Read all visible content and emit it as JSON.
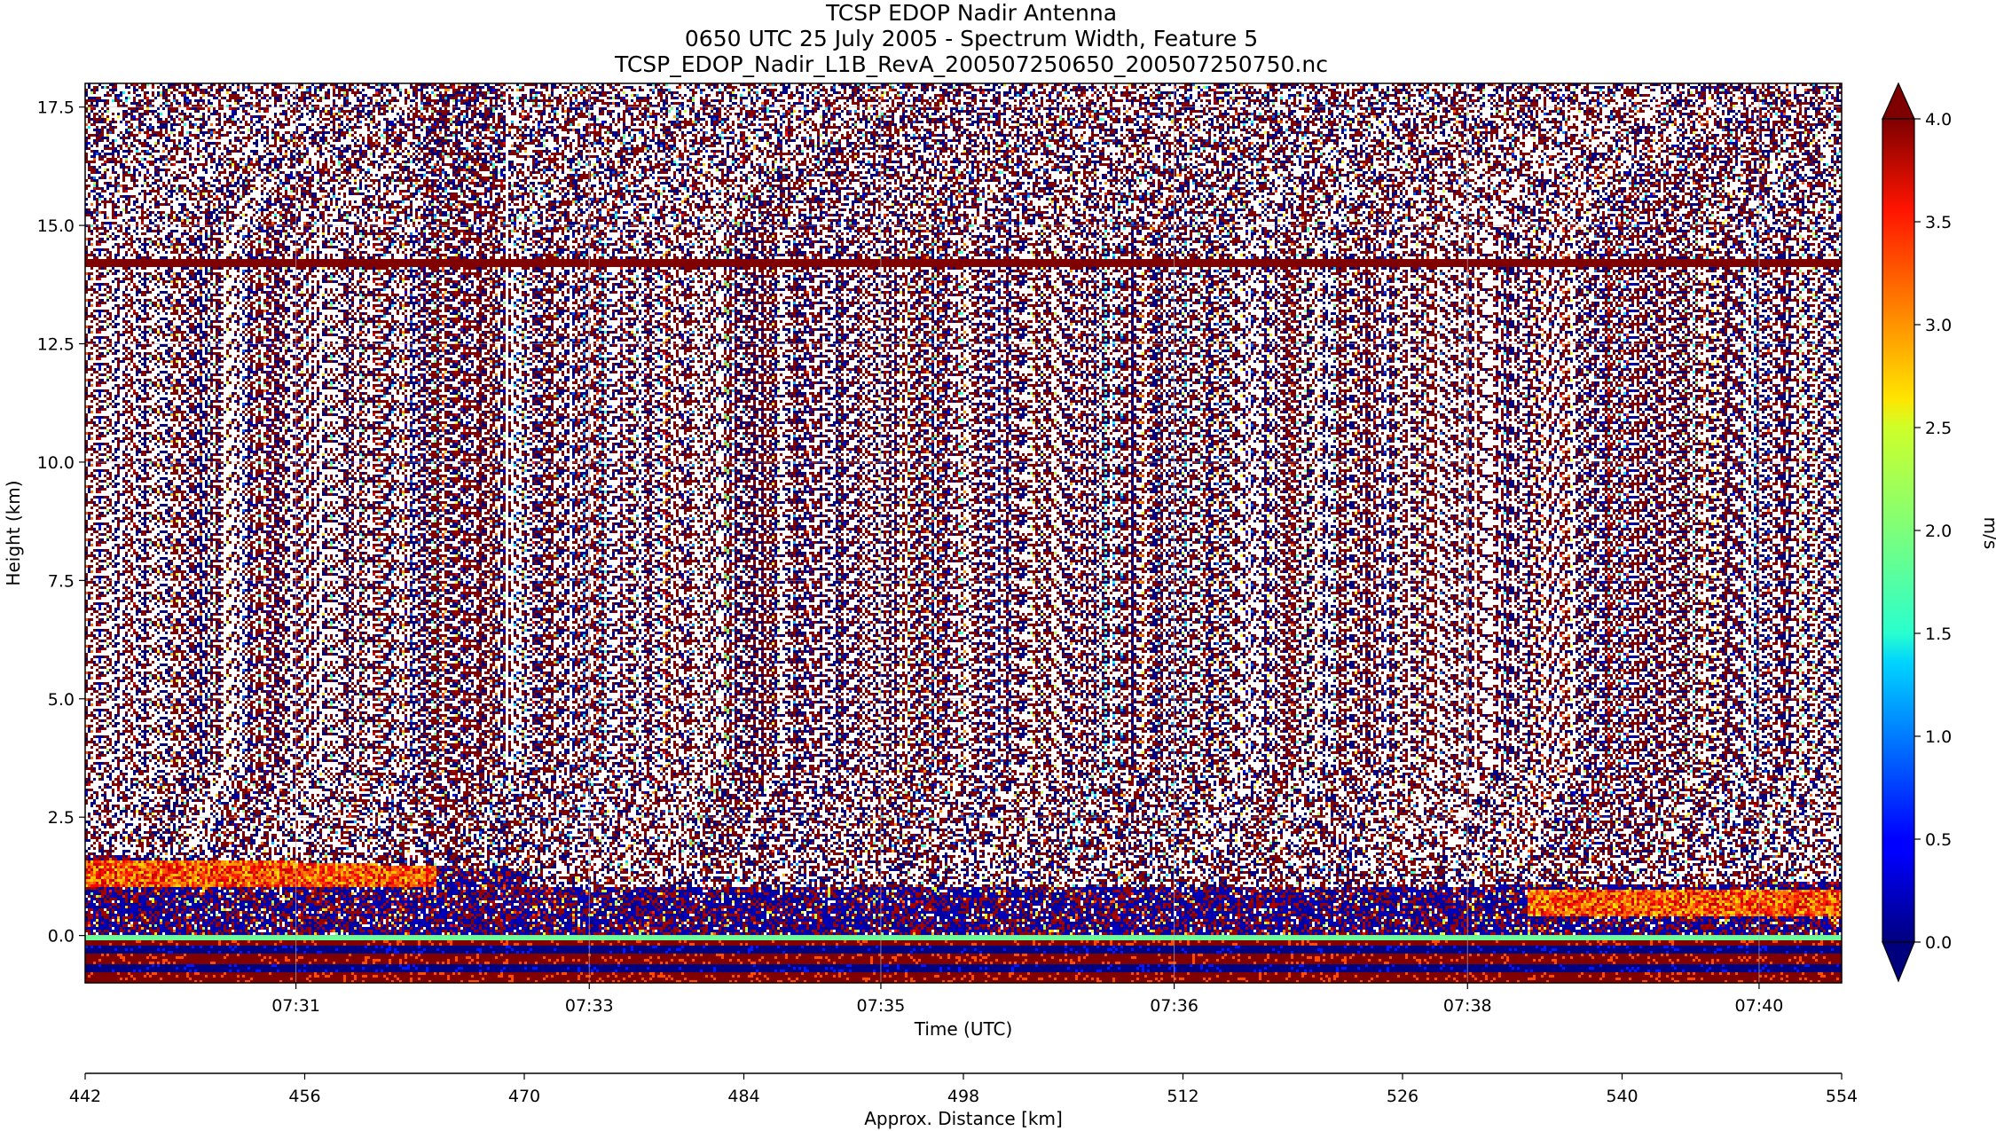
{
  "chart_data": {
    "type": "heatmap",
    "title_lines": [
      "TCSP EDOP Nadir Antenna",
      "0650 UTC 25 July 2005 - Spectrum Width, Feature 5",
      "TCSP_EDOP_Nadir_L1B_RevA_200507250650_200507250750.nc"
    ],
    "xlabel": "Time (UTC)",
    "ylabel": "Height (km)",
    "ylim": [
      -1.0,
      18.0
    ],
    "yticks": [
      0.0,
      2.5,
      5.0,
      7.5,
      10.0,
      12.5,
      15.0,
      17.5
    ],
    "ytick_labels": [
      "0.0",
      "2.5",
      "5.0",
      "7.5",
      "10.0",
      "12.5",
      "15.0",
      "17.5"
    ],
    "xticks_index": [
      0.12,
      0.287,
      0.453,
      0.62,
      0.787,
      0.953
    ],
    "xtick_labels": [
      "07:31",
      "07:33",
      "07:35",
      "07:36",
      "07:38",
      "07:40"
    ],
    "grid": true,
    "secondary_xaxis": {
      "label": "Approx. Distance [km]",
      "range": [
        442,
        554
      ],
      "ticks": [
        442,
        456,
        470,
        484,
        498,
        512,
        526,
        540,
        554
      ],
      "tick_labels": [
        "442",
        "456",
        "470",
        "484",
        "498",
        "512",
        "526",
        "540",
        "554"
      ]
    },
    "colorbar": {
      "label": "m/s",
      "range": [
        0.0,
        4.0
      ],
      "ticks": [
        0.0,
        0.5,
        1.0,
        1.5,
        2.0,
        2.5,
        3.0,
        3.5,
        4.0
      ],
      "tick_labels": [
        "0.0",
        "0.5",
        "1.0",
        "1.5",
        "2.0",
        "2.5",
        "3.0",
        "3.5",
        "4.0"
      ],
      "colormap": "jet",
      "extend": "both"
    },
    "features": [
      {
        "kind": "noise_field",
        "height_range_km": [
          0.0,
          18.0
        ],
        "values": "random 0-4"
      },
      {
        "kind": "horizontal_band",
        "height_km": 14.2,
        "value": 4.0
      },
      {
        "kind": "precip_layer",
        "height_range_km": [
          0.0,
          1.8
        ],
        "value_range": [
          2.5,
          3.5
        ]
      },
      {
        "kind": "surface_stripes",
        "height_range_km": [
          -1.0,
          0.0
        ],
        "values": [
          0.0,
          4.0
        ]
      }
    ]
  }
}
